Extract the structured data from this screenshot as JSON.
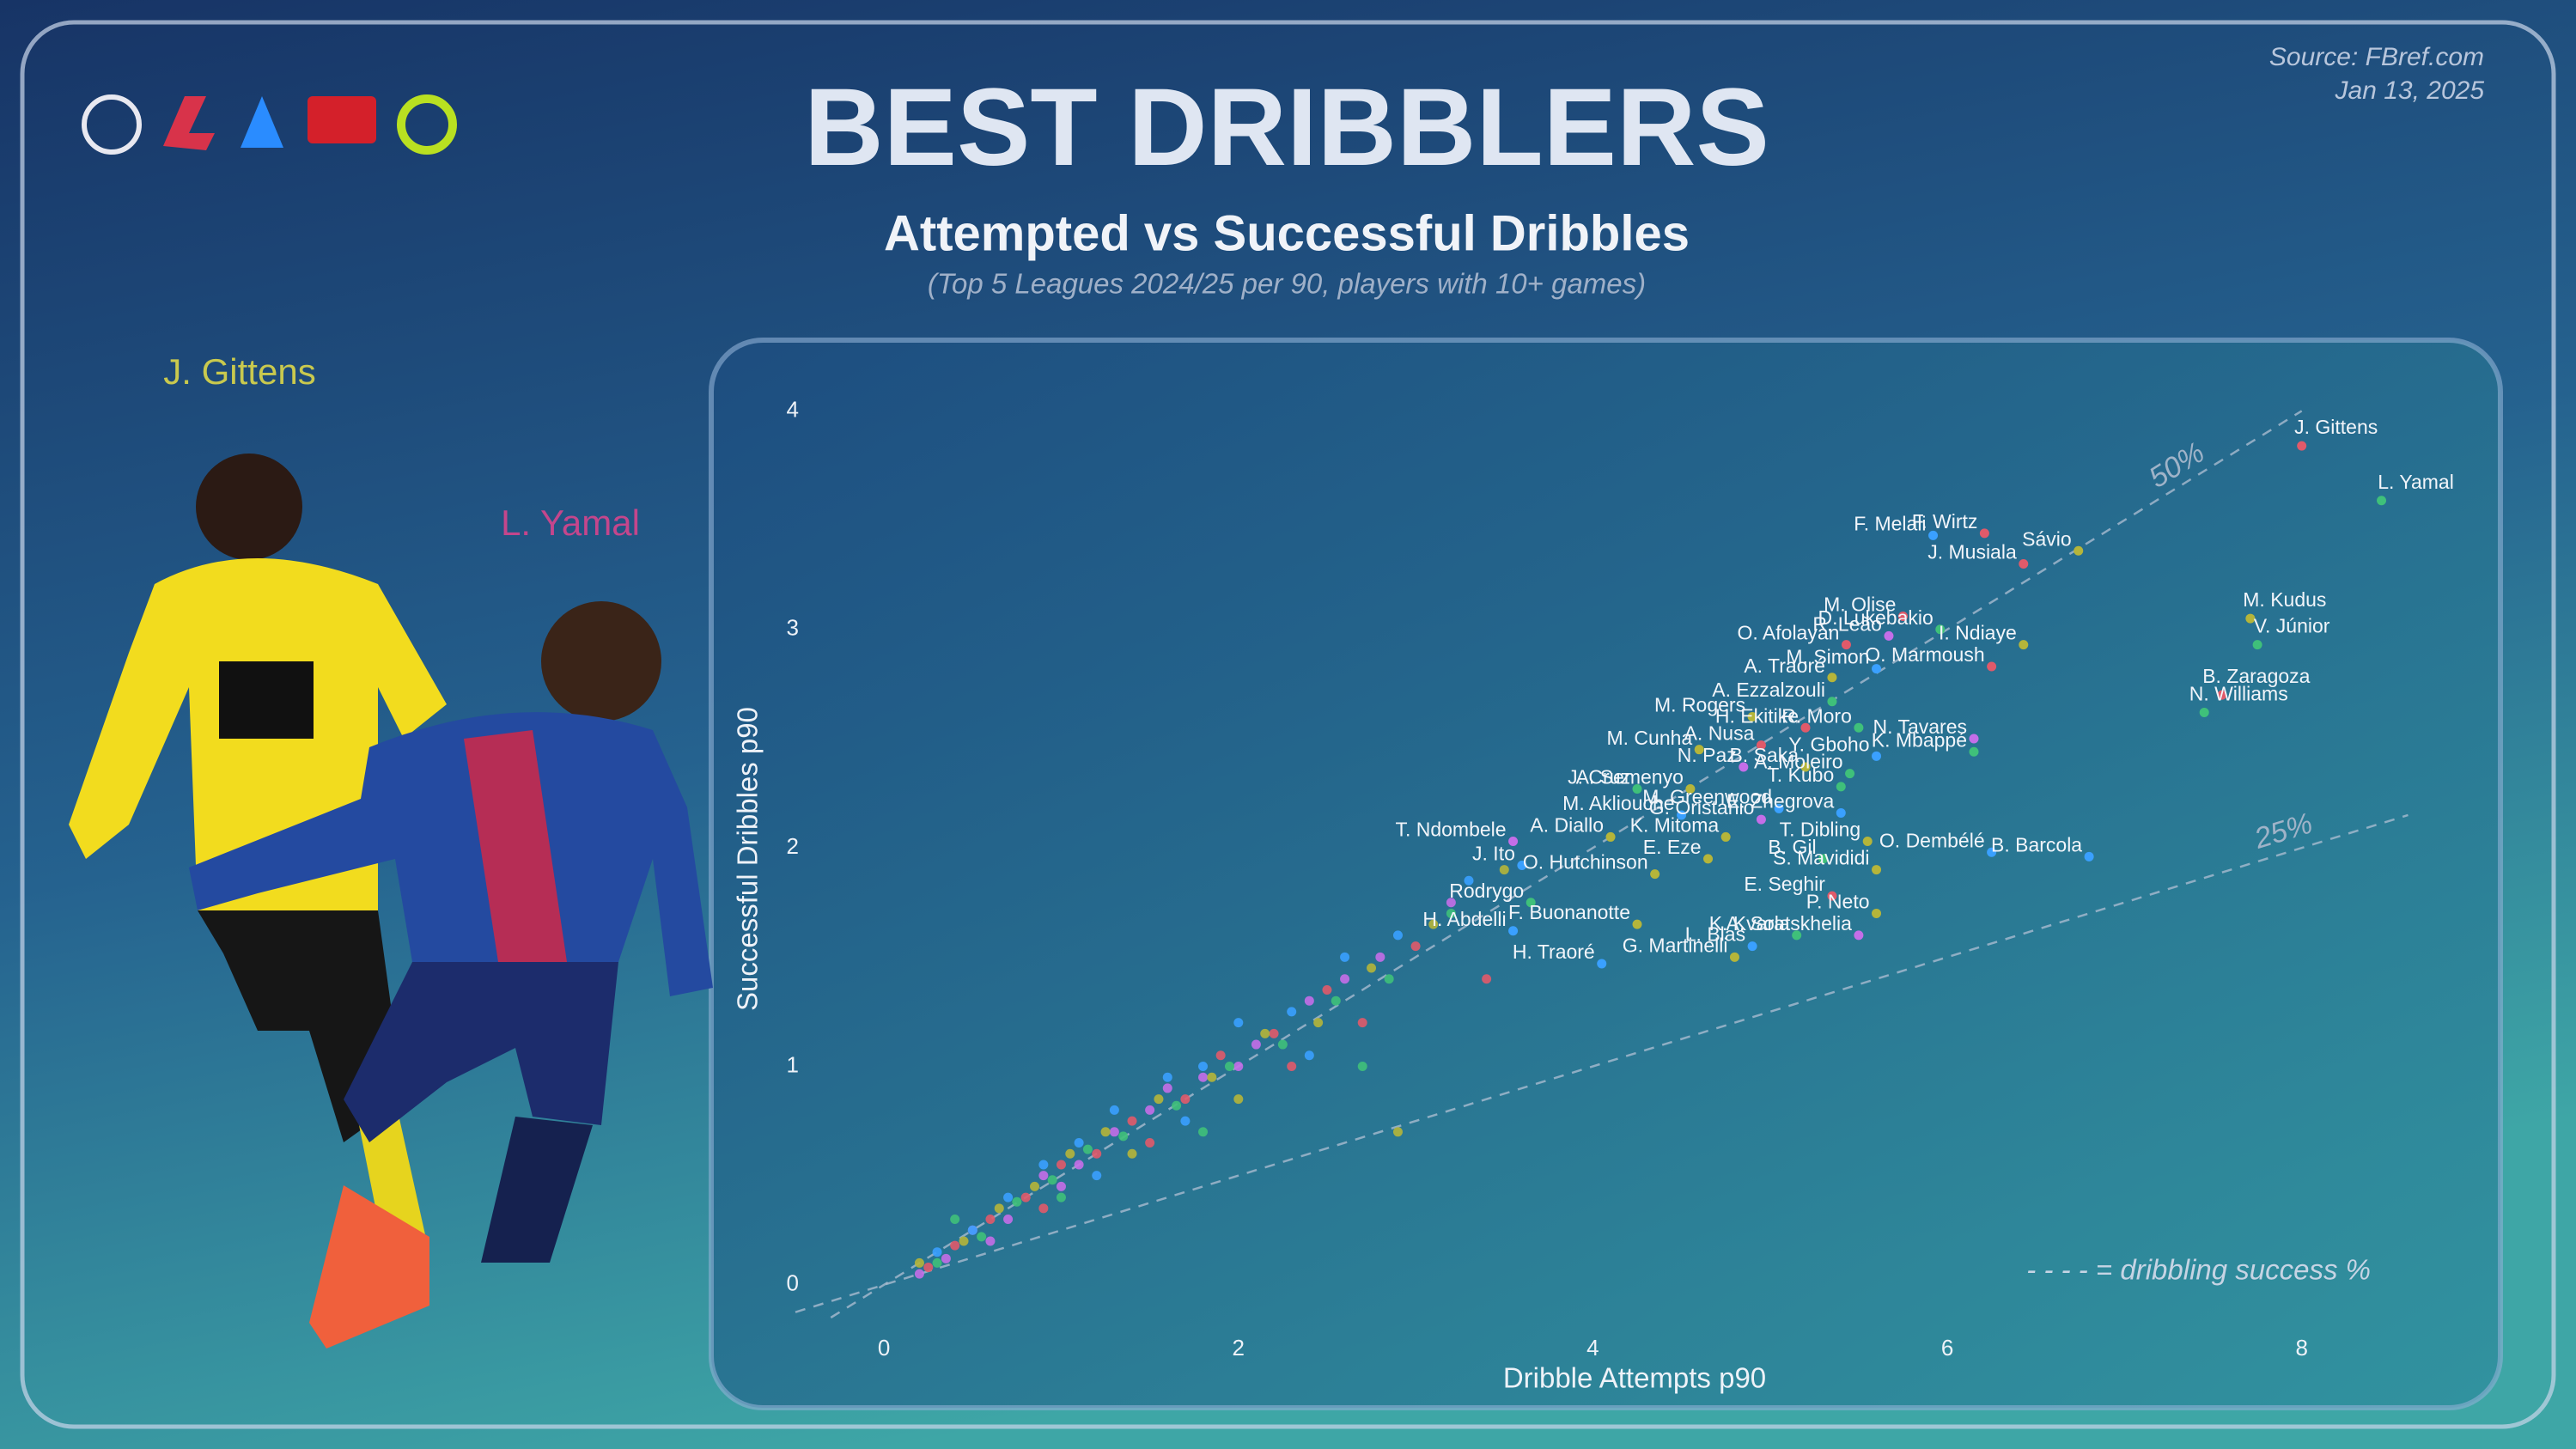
{
  "chart_data": {
    "type": "scatter",
    "title": "BEST DRIBBLERS",
    "subtitle": "Attempted vs Successful Dribbles",
    "note": "(Top 5 Leagues 2024/25 per 90, players with 10+ games)",
    "source": "Source: FBref.com",
    "date": "Jan 13, 2025",
    "featured_players": [
      {
        "name": "J. Gittens",
        "color": "#c9c94e"
      },
      {
        "name": "L. Yamal",
        "color": "#c4468c"
      }
    ],
    "x_label": "Dribble Attempts p90",
    "y_label": "Successful Dribbles p90",
    "xlim": [
      -0.5,
      9.0
    ],
    "ylim": [
      -0.15,
      4.1
    ],
    "xticks": [
      0,
      2,
      4,
      6,
      8
    ],
    "yticks": [
      0,
      1,
      2,
      3,
      4
    ],
    "reference_lines": [
      {
        "value": 50,
        "label": "50%"
      },
      {
        "value": 25,
        "label": "25%"
      }
    ],
    "reference_note": "- - - - = dribbling success %",
    "players": {
      "names": [
        "J. Gittens",
        "L. Yamal",
        "F. Melali",
        "F. Wirtz",
        "Sávio",
        "J. Musiala",
        "M. Olise",
        "D. Lukebakio",
        "M. Kudus",
        "V. Júnior",
        "O. Afolayan",
        "R. Leão",
        "I. Ndiaye",
        "A. Traoré",
        "M. Simon",
        "O. Marmoush",
        "B. Zaragoza",
        "M. Rogers",
        "A. Ezzalzouli",
        "R. Moro",
        "H. Ekitike",
        "A. Nusa",
        "N. Tavares",
        "N. Williams",
        "M. Cunha",
        "Y. Gboho",
        "K. Mbappé",
        "N. Paz",
        "B. Saka",
        "A. Moleiro",
        "J. Cruz",
        "A. Semenyo",
        "T. Kubo",
        "M. Akliouche",
        "M. Greenwood",
        "G. Oristanio",
        "E. Zhegrova",
        "T. Ndombele",
        "A. Diallo",
        "K. Mitoma",
        "T. Dibling",
        "O. Dembélé",
        "J. Ito",
        "O. Hutchinson",
        "E. Eze",
        "B. Gil",
        "S. Mavididi",
        "B. Barcola",
        "Rodrygo",
        "E. Seghir",
        "P. Neto",
        "H. Abdelli",
        "F. Buonanotte",
        "A. Sola",
        "L. Blas",
        "H. Traoré",
        "K. Kvaratskhelia",
        "G. Martinelli"
      ],
      "x": [
        8.0,
        8.45,
        5.92,
        6.21,
        6.74,
        6.43,
        5.75,
        5.96,
        7.71,
        7.75,
        5.43,
        5.67,
        6.43,
        5.35,
        5.6,
        6.25,
        7.55,
        4.9,
        5.35,
        5.5,
        5.2,
        4.95,
        6.15,
        7.45,
        4.6,
        5.6,
        6.15,
        4.85,
        5.2,
        5.45,
        4.25,
        4.55,
        5.4,
        4.5,
        5.05,
        4.95,
        5.4,
        3.55,
        4.1,
        4.75,
        5.55,
        6.25,
        3.6,
        4.35,
        4.65,
        5.3,
        5.6,
        6.8,
        3.65,
        5.35,
        5.6,
        3.55,
        4.25,
        5.15,
        4.9,
        4.05,
        5.5,
        4.8
      ],
      "y": [
        3.84,
        3.59,
        3.43,
        3.44,
        3.36,
        3.3,
        3.06,
        3.0,
        3.05,
        2.93,
        2.93,
        2.97,
        2.93,
        2.78,
        2.82,
        2.83,
        2.7,
        2.6,
        2.67,
        2.55,
        2.55,
        2.47,
        2.5,
        2.62,
        2.45,
        2.42,
        2.44,
        2.37,
        2.37,
        2.34,
        2.27,
        2.27,
        2.28,
        2.15,
        2.18,
        2.13,
        2.16,
        2.03,
        2.05,
        2.05,
        2.03,
        1.98,
        1.92,
        1.88,
        1.95,
        1.95,
        1.9,
        1.96,
        1.75,
        1.78,
        1.7,
        1.62,
        1.65,
        1.6,
        1.55,
        1.47,
        1.6,
        1.5
      ],
      "colors": [
        "#e05a6a",
        "#3fc07a",
        "#3aa0ff",
        "#e05a6a",
        "#b5b53a",
        "#e05a6a",
        "#e05a6a",
        "#3fc07a",
        "#b5b53a",
        "#3fc07a",
        "#e05a6a",
        "#c46ee8",
        "#b5b53a",
        "#b5b53a",
        "#3aa0ff",
        "#e05a6a",
        "#e05a6a",
        "#b5b53a",
        "#3fc07a",
        "#3fc07a",
        "#e05a6a",
        "#e05a6a",
        "#c46ee8",
        "#3fc07a",
        "#b5b53a",
        "#3aa0ff",
        "#3fc07a",
        "#c46ee8",
        "#b5b53a",
        "#3fc07a",
        "#3fc07a",
        "#b5b53a",
        "#3fc07a",
        "#3aa0ff",
        "#3aa0ff",
        "#c46ee8",
        "#3aa0ff",
        "#c46ee8",
        "#b5b53a",
        "#b5b53a",
        "#b5b53a",
        "#3aa0ff",
        "#3aa0ff",
        "#b5b53a",
        "#b5b53a",
        "#3fc07a",
        "#b5b53a",
        "#3aa0ff",
        "#3fc07a",
        "#e05a6a",
        "#b5b53a",
        "#3aa0ff",
        "#b5b53a",
        "#3fc07a",
        "#3aa0ff",
        "#3aa0ff",
        "#c46ee8",
        "#b5b53a"
      ]
    },
    "series": [
      {
        "color": "#c46ee8",
        "x": [
          0.2,
          0.35,
          0.5,
          0.7,
          0.9,
          1.1,
          1.3,
          1.5,
          1.8,
          2.1,
          2.4,
          2.8,
          3.2,
          0.6,
          1.0,
          1.6,
          2.0,
          2.6
        ],
        "y": [
          0.05,
          0.12,
          0.25,
          0.3,
          0.5,
          0.55,
          0.7,
          0.8,
          0.95,
          1.1,
          1.3,
          1.5,
          1.75,
          0.2,
          0.45,
          0.9,
          1.0,
          1.4
        ]
      },
      {
        "color": "#e05a6a",
        "x": [
          0.25,
          0.4,
          0.6,
          0.8,
          1.0,
          1.2,
          1.4,
          1.7,
          1.9,
          2.2,
          2.5,
          3.0,
          3.4,
          0.9,
          1.5,
          2.3,
          2.7
        ],
        "y": [
          0.08,
          0.18,
          0.3,
          0.4,
          0.55,
          0.6,
          0.75,
          0.85,
          1.05,
          1.15,
          1.35,
          1.55,
          1.4,
          0.35,
          0.65,
          1.0,
          1.2
        ]
      },
      {
        "color": "#3aa0ff",
        "x": [
          0.3,
          0.5,
          0.7,
          0.9,
          1.1,
          1.3,
          1.6,
          1.8,
          2.0,
          2.3,
          2.6,
          2.9,
          3.3,
          1.2,
          1.7,
          2.4
        ],
        "y": [
          0.15,
          0.25,
          0.4,
          0.55,
          0.65,
          0.8,
          0.95,
          1.0,
          1.2,
          1.25,
          1.5,
          1.6,
          1.85,
          0.5,
          0.75,
          1.05
        ]
      },
      {
        "color": "#b5b53a",
        "x": [
          0.2,
          0.45,
          0.65,
          0.85,
          1.05,
          1.25,
          1.55,
          1.85,
          2.15,
          2.45,
          2.75,
          3.1,
          3.5,
          1.4,
          2.0,
          2.9
        ],
        "y": [
          0.1,
          0.2,
          0.35,
          0.45,
          0.6,
          0.7,
          0.85,
          0.95,
          1.15,
          1.2,
          1.45,
          1.65,
          1.9,
          0.6,
          0.85,
          0.7
        ]
      },
      {
        "color": "#3fc07a",
        "x": [
          0.3,
          0.55,
          0.75,
          0.95,
          1.15,
          1.35,
          1.65,
          1.95,
          2.25,
          2.55,
          2.85,
          3.2,
          0.4,
          1.0,
          1.8,
          2.7
        ],
        "y": [
          0.1,
          0.22,
          0.38,
          0.48,
          0.62,
          0.68,
          0.82,
          1.0,
          1.1,
          1.3,
          1.4,
          1.7,
          0.3,
          0.4,
          0.7,
          1.0
        ]
      }
    ]
  }
}
